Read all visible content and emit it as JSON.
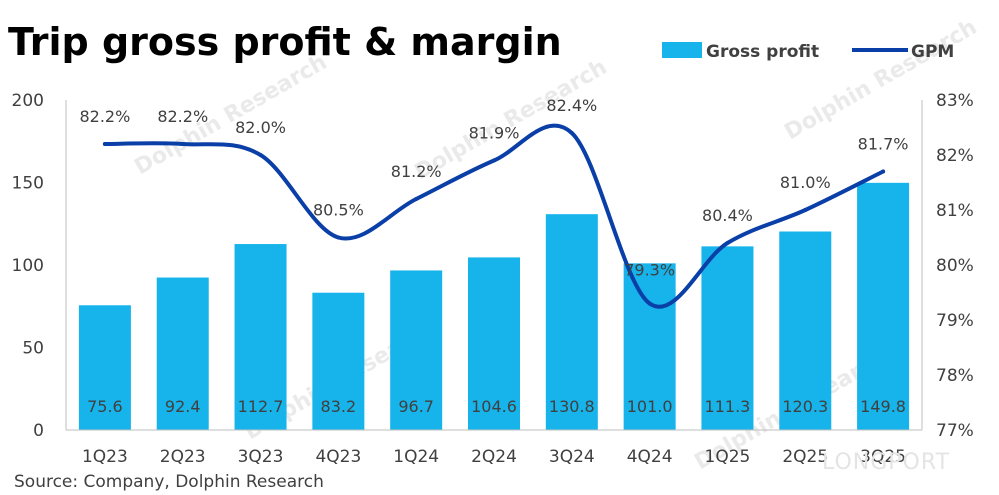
{
  "title": "Trip gross profit & margin",
  "source": "Source: Company, Dolphin Research",
  "watermark": "Dolphin Research",
  "brand_mark": "LONGPORT",
  "colors": {
    "bar": "#16b4ea",
    "line": "#0b3fa8",
    "text": "#404040",
    "title": "#000000"
  },
  "chart_data": {
    "type": "bar",
    "title": "Trip gross profit & margin",
    "categories": [
      "1Q23",
      "2Q23",
      "3Q23",
      "4Q23",
      "1Q24",
      "2Q24",
      "3Q24",
      "4Q24",
      "1Q25",
      "2Q25",
      "3Q25"
    ],
    "series": [
      {
        "name": "Gross profit",
        "type": "bar",
        "axis": "left",
        "values": [
          75.6,
          92.4,
          112.7,
          83.2,
          96.7,
          104.6,
          130.8,
          101.0,
          111.3,
          120.3,
          149.8
        ],
        "labels": [
          "75.6",
          "92.4",
          "112.7",
          "83.2",
          "96.7",
          "104.6",
          "130.8",
          "101.0",
          "111.3",
          "120.3",
          "149.8"
        ]
      },
      {
        "name": "GPM",
        "type": "line",
        "axis": "right",
        "values": [
          82.2,
          82.2,
          82.0,
          80.5,
          81.2,
          81.9,
          82.4,
          79.3,
          80.4,
          81.0,
          81.7
        ],
        "labels": [
          "82.2%",
          "82.2%",
          "82.0%",
          "80.5%",
          "81.2%",
          "81.9%",
          "82.4%",
          "79.3%",
          "80.4%",
          "81.0%",
          "81.7%"
        ]
      }
    ],
    "y_left": {
      "min": 0,
      "max": 200,
      "ticks": [
        0,
        50,
        100,
        150,
        200
      ],
      "tick_labels": [
        "0",
        "50",
        "100",
        "150",
        "200"
      ]
    },
    "y_right": {
      "min": 77,
      "max": 83,
      "ticks": [
        77,
        78,
        79,
        80,
        81,
        82,
        83
      ],
      "tick_labels": [
        "77%",
        "78%",
        "79%",
        "80%",
        "81%",
        "82%",
        "83%"
      ]
    },
    "legend": {
      "position": "top-right",
      "entries": [
        "Gross profit",
        "GPM"
      ]
    },
    "grid": false
  }
}
